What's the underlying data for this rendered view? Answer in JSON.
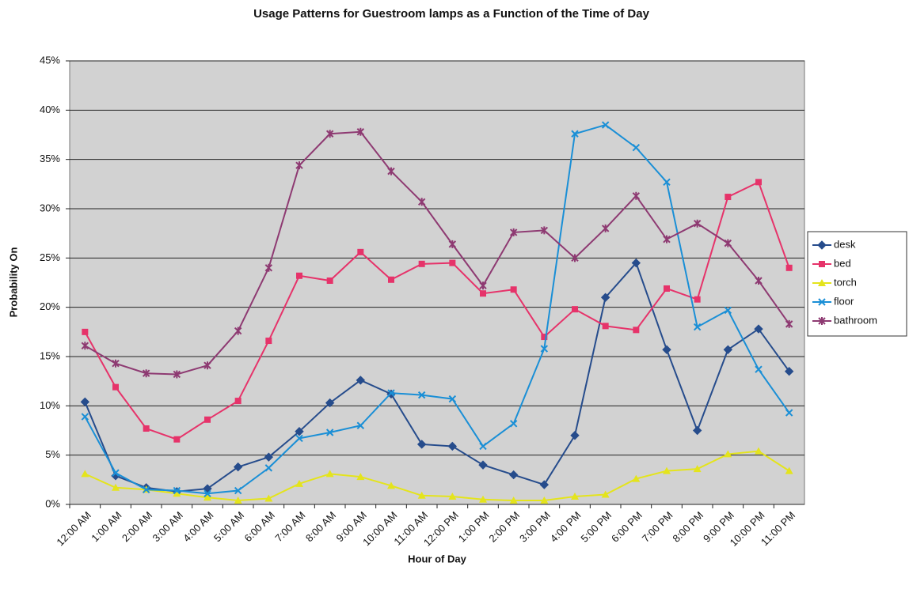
{
  "chart_data": {
    "type": "line",
    "title": "Usage Patterns for Guestroom lamps as a Function of the Time of Day",
    "x_label": "Hour of Day",
    "y_label": "Probability On",
    "categories": [
      "12:00 AM",
      "1:00 AM",
      "2:00 AM",
      "3:00 AM",
      "4:00 AM",
      "5:00 AM",
      "6:00 AM",
      "7:00 AM",
      "8:00 AM",
      "9:00 AM",
      "10:00 AM",
      "11:00 AM",
      "12:00 PM",
      "1:00 PM",
      "2:00 PM",
      "3:00 PM",
      "4:00 PM",
      "5:00 PM",
      "6:00 PM",
      "7:00 PM",
      "8:00 PM",
      "9:00 PM",
      "10:00 PM",
      "11:00 PM"
    ],
    "series": [
      {
        "name": "desk",
        "color": "#264c8c",
        "marker": "diamond",
        "values": [
          10.4,
          2.9,
          1.7,
          1.3,
          1.6,
          3.8,
          4.8,
          7.4,
          10.3,
          12.6,
          11.2,
          6.1,
          5.9,
          4.0,
          3.0,
          2.0,
          7.0,
          21.0,
          24.5,
          15.7,
          7.5,
          15.7,
          17.8,
          13.5
        ]
      },
      {
        "name": "bed",
        "color": "#e6336a",
        "marker": "square",
        "values": [
          17.5,
          11.9,
          7.7,
          6.6,
          8.6,
          10.5,
          16.6,
          23.2,
          22.7,
          25.6,
          22.8,
          24.4,
          24.5,
          21.4,
          21.8,
          17.0,
          19.8,
          18.1,
          17.7,
          21.9,
          20.8,
          31.2,
          32.7,
          24.0
        ]
      },
      {
        "name": "torch",
        "color": "#e4e41c",
        "marker": "triangle",
        "values": [
          3.1,
          1.7,
          1.5,
          1.1,
          0.7,
          0.4,
          0.6,
          2.1,
          3.1,
          2.8,
          1.9,
          0.9,
          0.8,
          0.5,
          0.4,
          0.4,
          0.8,
          1.0,
          2.6,
          3.4,
          3.6,
          5.1,
          5.4,
          3.4
        ]
      },
      {
        "name": "floor",
        "color": "#1a8fd6",
        "marker": "x",
        "values": [
          8.9,
          3.2,
          1.5,
          1.4,
          1.1,
          1.4,
          3.7,
          6.7,
          7.3,
          8.0,
          11.3,
          11.1,
          10.7,
          5.9,
          8.2,
          15.8,
          37.6,
          38.5,
          36.2,
          32.7,
          18.0,
          19.7,
          13.7,
          9.3
        ]
      },
      {
        "name": "bathroom",
        "color": "#8e3a72",
        "marker": "star",
        "values": [
          16.1,
          14.3,
          13.3,
          13.2,
          14.1,
          17.6,
          24.0,
          34.4,
          37.6,
          37.8,
          33.8,
          30.7,
          26.4,
          22.2,
          27.6,
          27.8,
          25.0,
          28.0,
          31.3,
          26.9,
          28.5,
          26.5,
          22.7,
          18.3
        ]
      }
    ],
    "ylim": [
      0,
      45
    ],
    "yticks": [
      {
        "value": 0,
        "label": "0%"
      },
      {
        "value": 5,
        "label": "5%"
      },
      {
        "value": 10,
        "label": "10%"
      },
      {
        "value": 15,
        "label": "15%"
      },
      {
        "value": 20,
        "label": "20%"
      },
      {
        "value": 25,
        "label": "25%"
      },
      {
        "value": 30,
        "label": "30%"
      },
      {
        "value": 35,
        "label": "35%"
      },
      {
        "value": 40,
        "label": "40%"
      },
      {
        "value": 45,
        "label": "45%"
      }
    ],
    "grid": true,
    "legend": "right"
  }
}
